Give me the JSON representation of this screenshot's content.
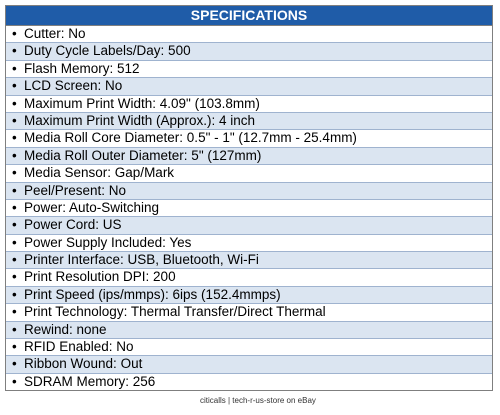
{
  "header": {
    "title": "SPECIFICATIONS"
  },
  "table": {
    "rows": [
      "Cutter: No",
      "Duty Cycle Labels/Day: 500",
      "Flash Memory: 512",
      "LCD Screen: No",
      "Maximum Print Width: 4.09\" (103.8mm)",
      "Maximum Print Width (Approx.): 4 inch",
      "Media Roll Core Diameter: 0.5\" - 1\" (12.7mm - 25.4mm)",
      "Media Roll Outer Diameter: 5\" (127mm)",
      "Media Sensor: Gap/Mark",
      "Peel/Present: No",
      "Power: Auto-Switching",
      "Power Cord: US",
      "Power Supply Included: Yes",
      "Printer Interface: USB, Bluetooth, Wi-Fi",
      "Print Resolution DPI: 200",
      "Print Speed (ips/mmps): 6ips (152.4mmps)",
      "Print Technology: Thermal Transfer/Direct Thermal",
      "Rewind: none",
      "RFID Enabled: No",
      "Ribbon Wound: Out",
      "SDRAM Memory: 256"
    ]
  },
  "footer": "citicalls | tech-r-us-store on eBay"
}
